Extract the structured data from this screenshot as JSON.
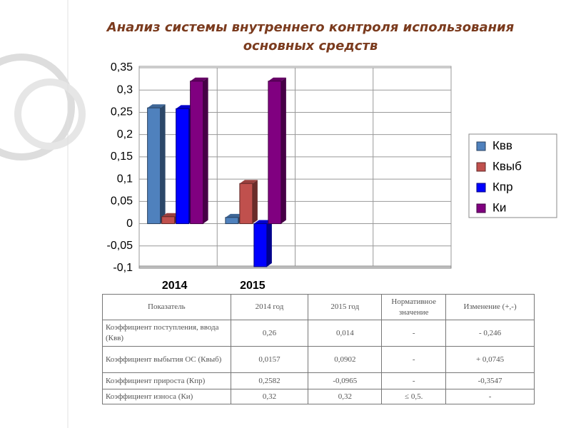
{
  "chart_data": {
    "type": "bar",
    "title": "Анализ системы внутреннего контроля использования основных средств",
    "categories": [
      "2014",
      "2015",
      null,
      null
    ],
    "series": [
      {
        "name": "Квв",
        "color": "#4f81bd",
        "values": [
          0.26,
          0.014,
          null,
          null
        ]
      },
      {
        "name": "Квыб",
        "color": "#c0504d",
        "values": [
          0.0157,
          0.0902,
          null,
          null
        ]
      },
      {
        "name": "Кпр",
        "color": "#0000ff",
        "values": [
          0.2582,
          -0.0965,
          null,
          null
        ]
      },
      {
        "name": "Ки",
        "color": "#800080",
        "values": [
          0.32,
          0.32,
          null,
          null
        ]
      }
    ],
    "ylim": [
      -0.1,
      0.35
    ],
    "yticks": [
      {
        "value": -0.1,
        "label": "-0,1"
      },
      {
        "value": -0.05,
        "label": "-0,05"
      },
      0,
      {
        "value": 0.05,
        "label": "0,05"
      },
      {
        "value": 0.1,
        "label": "0,1"
      },
      {
        "value": 0.15,
        "label": "0,15"
      },
      {
        "value": 0.2,
        "label": "0,2"
      },
      {
        "value": 0.25,
        "label": "0,25"
      },
      {
        "value": 0.3,
        "label": "0,3"
      },
      {
        "value": 0.35,
        "label": "0,35"
      }
    ],
    "grid": true,
    "legend": "right"
  },
  "table": {
    "header": [
      "Показатель",
      "2014 год",
      "2015 год",
      "Нормативное значение",
      "Изменение (+,-)"
    ],
    "rows": [
      [
        "Коэффициент поступления, ввода (Квв)",
        "0,26",
        "0,014",
        "-",
        "- 0,246"
      ],
      [
        "Коэффициент выбытия ОС (Квыб)",
        "0,0157",
        "0,0902",
        "-",
        "+ 0,0745"
      ],
      [
        "Коэффициент прироста (Кпр)",
        "0,2582",
        "-0,0965",
        "-",
        "-0,3547"
      ],
      [
        "Коэффициент износа (Ки)",
        "0,32",
        "0,32",
        "≤ 0,5.",
        "-"
      ]
    ]
  }
}
